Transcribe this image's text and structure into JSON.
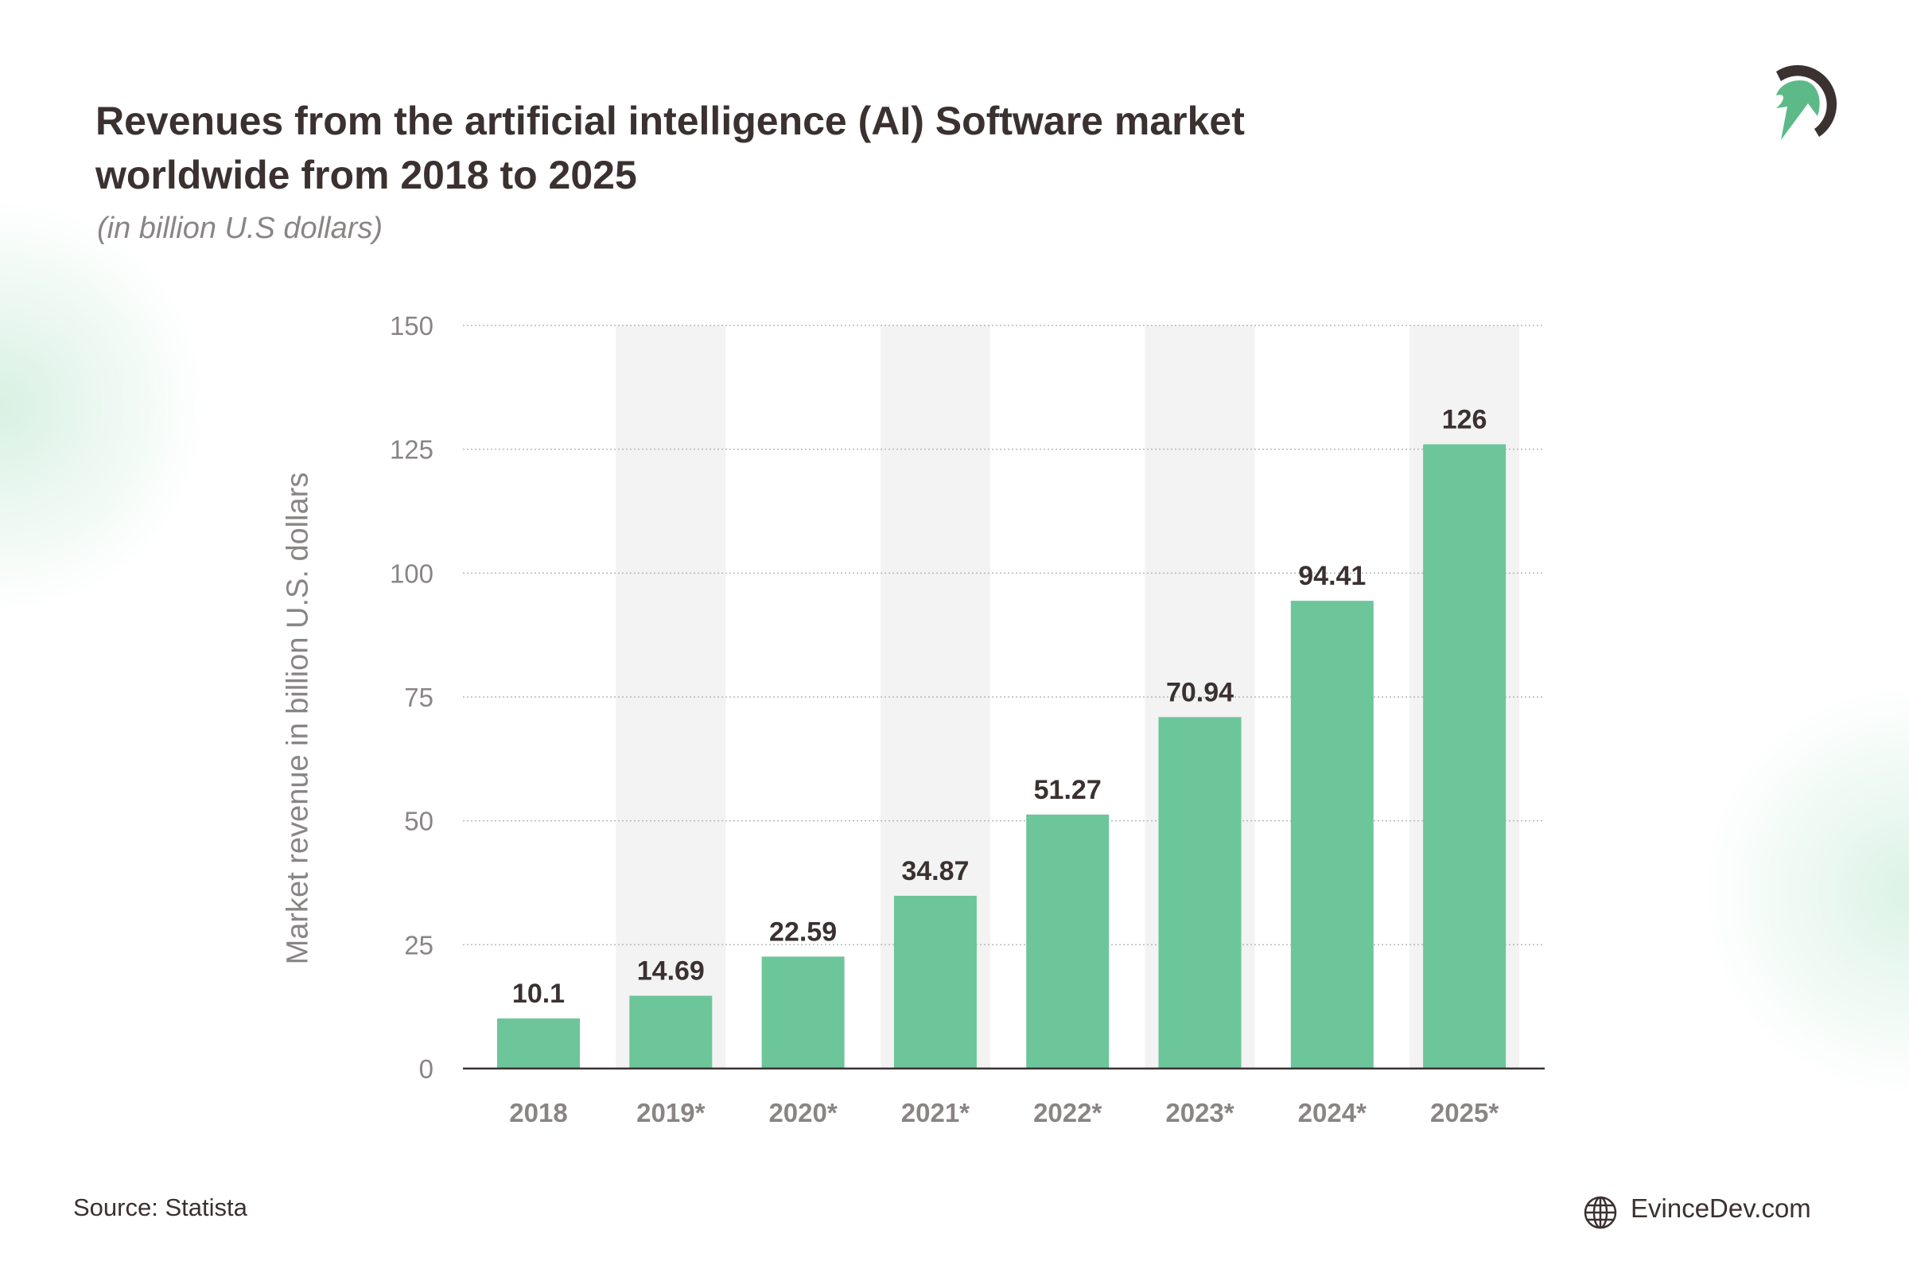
{
  "chart_data": {
    "type": "bar",
    "title": "Revenues from the artificial intelligence (AI) Software market worldwide from 2018 to 2025",
    "subtitle": "(in billion U.S dollars)",
    "ylabel": "Market revenue in billion U.S. dollars",
    "xlabel": "",
    "categories": [
      "2018",
      "2019*",
      "2020*",
      "2021*",
      "2022*",
      "2023*",
      "2024*",
      "2025*"
    ],
    "values": [
      10.1,
      14.69,
      22.59,
      34.87,
      51.27,
      70.94,
      94.41,
      126
    ],
    "value_labels": [
      "10.1",
      "14.69",
      "22.59",
      "34.87",
      "51.27",
      "70.94",
      "94.41",
      "126"
    ],
    "yticks": [
      0,
      25,
      50,
      75,
      100,
      125,
      150
    ],
    "ylim": [
      0,
      150
    ],
    "grid": true,
    "bar_color": "#6dc59a",
    "band_color": "#f3f3f3"
  },
  "footer": {
    "source": "Source: Statista",
    "site": "EvinceDev.com",
    "globe_icon": "globe-icon"
  },
  "logo": {
    "name": "EvinceDev helmet logo",
    "colors": [
      "#3a3130",
      "#5dba88"
    ]
  }
}
